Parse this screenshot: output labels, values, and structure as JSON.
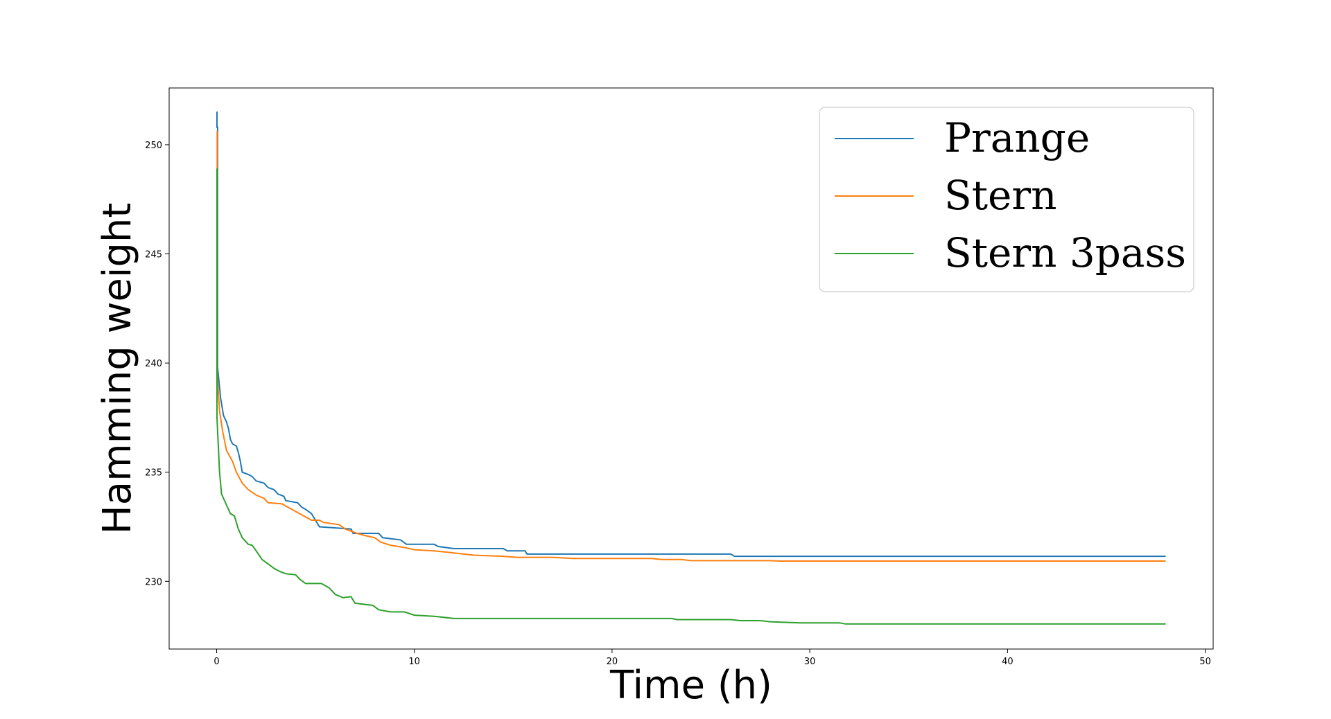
{
  "chart_data": {
    "type": "line",
    "title": "",
    "xlabel": "Time (h)",
    "ylabel": "Hamming weight",
    "xlim": [
      -2.4,
      50.4
    ],
    "ylim": [
      226.9,
      252.6
    ],
    "xticks": [
      0,
      10,
      20,
      30,
      40,
      50
    ],
    "yticks": [
      230,
      235,
      240,
      245,
      250
    ],
    "grid": false,
    "legend_position": "top-right",
    "series": [
      {
        "name": "Prange",
        "color": "#1f77b4",
        "points": [
          [
            0,
            251.5
          ],
          [
            0.02,
            251.5
          ],
          [
            0.02,
            250.8
          ],
          [
            0.05,
            250.8
          ],
          [
            0.05,
            239.8
          ],
          [
            0.2,
            238.4
          ],
          [
            0.35,
            237.6
          ],
          [
            0.5,
            237.3
          ],
          [
            0.6,
            237.0
          ],
          [
            0.7,
            236.5
          ],
          [
            0.8,
            236.3
          ],
          [
            1.0,
            236.2
          ],
          [
            1.1,
            235.9
          ],
          [
            1.2,
            235.5
          ],
          [
            1.3,
            235.0
          ],
          [
            1.6,
            234.9
          ],
          [
            1.8,
            234.8
          ],
          [
            2.0,
            234.6
          ],
          [
            2.4,
            234.5
          ],
          [
            2.6,
            234.3
          ],
          [
            2.9,
            234.2
          ],
          [
            3.1,
            234.0
          ],
          [
            3.4,
            233.9
          ],
          [
            3.5,
            233.7
          ],
          [
            4.1,
            233.6
          ],
          [
            4.3,
            233.4
          ],
          [
            4.5,
            233.3
          ],
          [
            4.8,
            233.1
          ],
          [
            5.0,
            232.8
          ],
          [
            5.2,
            232.5
          ],
          [
            6.8,
            232.4
          ],
          [
            6.9,
            232.2
          ],
          [
            8.2,
            232.2
          ],
          [
            8.4,
            232.0
          ],
          [
            9.3,
            231.9
          ],
          [
            9.6,
            231.7
          ],
          [
            11.0,
            231.7
          ],
          [
            11.2,
            231.6
          ],
          [
            12.0,
            231.5
          ],
          [
            14.5,
            231.5
          ],
          [
            14.7,
            231.4
          ],
          [
            15.6,
            231.4
          ],
          [
            15.7,
            231.25
          ],
          [
            26.0,
            231.25
          ],
          [
            26.2,
            231.15
          ],
          [
            48.0,
            231.15
          ]
        ]
      },
      {
        "name": "Stern",
        "color": "#ff7f0e",
        "points": [
          [
            0,
            250.6
          ],
          [
            0.03,
            250.6
          ],
          [
            0.03,
            239.5
          ],
          [
            0.15,
            237.8
          ],
          [
            0.3,
            236.9
          ],
          [
            0.5,
            236.0
          ],
          [
            0.8,
            235.5
          ],
          [
            1.0,
            235.0
          ],
          [
            1.3,
            234.5
          ],
          [
            1.6,
            234.2
          ],
          [
            2.0,
            233.95
          ],
          [
            2.4,
            233.8
          ],
          [
            2.6,
            233.6
          ],
          [
            3.3,
            233.55
          ],
          [
            3.6,
            233.4
          ],
          [
            4.0,
            233.2
          ],
          [
            4.4,
            233.0
          ],
          [
            4.8,
            232.8
          ],
          [
            5.2,
            232.8
          ],
          [
            5.4,
            232.7
          ],
          [
            6.2,
            232.6
          ],
          [
            6.5,
            232.4
          ],
          [
            7.1,
            232.2
          ],
          [
            7.5,
            232.1
          ],
          [
            8.0,
            232.0
          ],
          [
            8.3,
            231.8
          ],
          [
            8.8,
            231.65
          ],
          [
            9.5,
            231.55
          ],
          [
            10.0,
            231.45
          ],
          [
            11.0,
            231.4
          ],
          [
            12.0,
            231.3
          ],
          [
            13.0,
            231.2
          ],
          [
            14.5,
            231.15
          ],
          [
            15.2,
            231.1
          ],
          [
            17.0,
            231.1
          ],
          [
            18.0,
            231.05
          ],
          [
            22.0,
            231.05
          ],
          [
            22.5,
            231.0
          ],
          [
            23.5,
            231.0
          ],
          [
            24.0,
            230.95
          ],
          [
            28.0,
            230.95
          ],
          [
            28.5,
            230.93
          ],
          [
            48.0,
            230.93
          ]
        ]
      },
      {
        "name": "Stern 3pass",
        "color": "#2ca02c",
        "points": [
          [
            0,
            248.9
          ],
          [
            0.02,
            248.9
          ],
          [
            0.02,
            237.5
          ],
          [
            0.15,
            235.0
          ],
          [
            0.25,
            234.0
          ],
          [
            0.5,
            233.5
          ],
          [
            0.7,
            233.1
          ],
          [
            0.9,
            233.0
          ],
          [
            1.1,
            232.4
          ],
          [
            1.3,
            232.0
          ],
          [
            1.6,
            231.7
          ],
          [
            1.8,
            231.65
          ],
          [
            2.0,
            231.4
          ],
          [
            2.3,
            231.0
          ],
          [
            2.6,
            230.8
          ],
          [
            2.9,
            230.6
          ],
          [
            3.2,
            230.45
          ],
          [
            3.5,
            230.35
          ],
          [
            4.0,
            230.3
          ],
          [
            4.2,
            230.1
          ],
          [
            4.5,
            229.9
          ],
          [
            5.3,
            229.9
          ],
          [
            5.7,
            229.7
          ],
          [
            6.0,
            229.4
          ],
          [
            6.4,
            229.25
          ],
          [
            6.8,
            229.3
          ],
          [
            7.0,
            229.0
          ],
          [
            7.9,
            228.9
          ],
          [
            8.2,
            228.7
          ],
          [
            8.8,
            228.6
          ],
          [
            9.5,
            228.6
          ],
          [
            10.0,
            228.45
          ],
          [
            11.0,
            228.4
          ],
          [
            12.0,
            228.3
          ],
          [
            23.0,
            228.3
          ],
          [
            23.3,
            228.25
          ],
          [
            26.0,
            228.25
          ],
          [
            26.5,
            228.2
          ],
          [
            27.5,
            228.2
          ],
          [
            28.0,
            228.15
          ],
          [
            29.5,
            228.1
          ],
          [
            31.5,
            228.1
          ],
          [
            31.8,
            228.05
          ],
          [
            48.0,
            228.05
          ]
        ]
      }
    ]
  }
}
